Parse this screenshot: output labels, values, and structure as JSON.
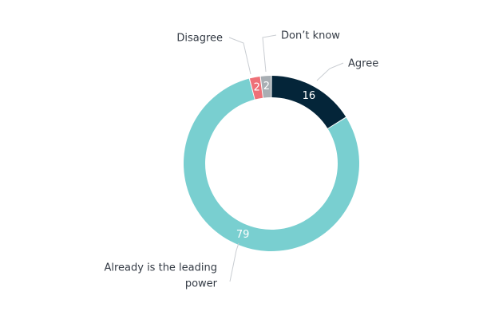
{
  "chart_data": {
    "type": "pie",
    "categories": [
      "Agree",
      "Already is the leading power",
      "Disagree",
      "Don’t know"
    ],
    "values": [
      16,
      79,
      2,
      2
    ],
    "data_labels": [
      "16",
      "79",
      "2",
      "2"
    ],
    "category_labels": [
      [
        "Agree"
      ],
      [
        "Already is the leading",
        "power"
      ],
      [
        "Disagree"
      ],
      [
        "Don’t know"
      ]
    ],
    "colors": [
      "#042539",
      "#79cfd0",
      "#ee7077",
      "#a8aeb3"
    ],
    "title": "",
    "legend": "none"
  }
}
